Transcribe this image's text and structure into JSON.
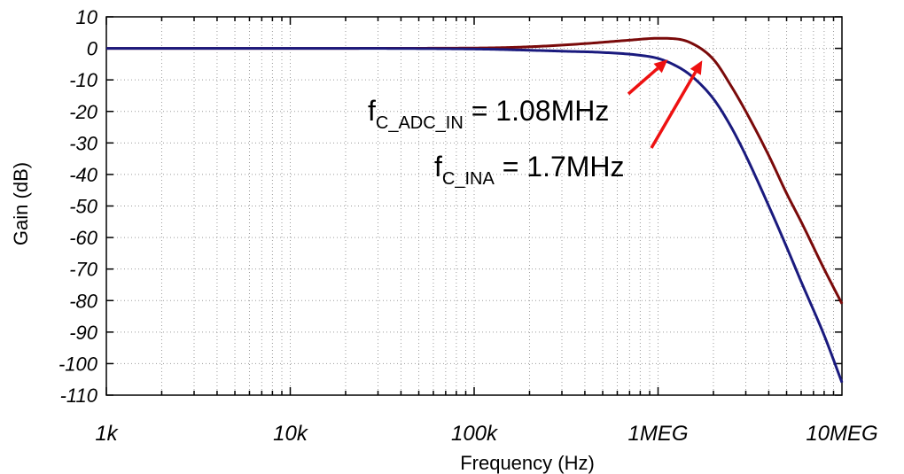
{
  "chart_data": {
    "type": "line",
    "xlabel": "Frequency (Hz)",
    "ylabel": "Gain (dB)",
    "xscale": "log",
    "xlim": [
      1000,
      10000000
    ],
    "ylim": [
      -110,
      10
    ],
    "grid": true,
    "x_major_ticks": [
      {
        "value": 1000,
        "label": "1k"
      },
      {
        "value": 10000,
        "label": "10k"
      },
      {
        "value": 100000,
        "label": "100k"
      },
      {
        "value": 1000000,
        "label": "1MEG"
      },
      {
        "value": 10000000,
        "label": "10MEG"
      }
    ],
    "y_ticks": [
      {
        "value": 10,
        "label": "10"
      },
      {
        "value": 0,
        "label": "0"
      },
      {
        "value": -10,
        "label": "-10"
      },
      {
        "value": -20,
        "label": "-20"
      },
      {
        "value": -30,
        "label": "-30"
      },
      {
        "value": -40,
        "label": "-40"
      },
      {
        "value": -50,
        "label": "-50"
      },
      {
        "value": -60,
        "label": "-60"
      },
      {
        "value": -70,
        "label": "-70"
      },
      {
        "value": -80,
        "label": "-80"
      },
      {
        "value": -90,
        "label": "-90"
      },
      {
        "value": -100,
        "label": "-100"
      },
      {
        "value": -110,
        "label": "-110"
      }
    ],
    "series": [
      {
        "color": "#7a0a0a",
        "x": [
          1000,
          10000,
          100000,
          200000,
          400000,
          700000,
          1000000,
          1200000,
          1500000,
          2000000,
          2500000,
          3000000,
          4000000,
          5000000,
          6000000,
          8000000,
          10000000
        ],
        "y": [
          0,
          0,
          0.1,
          0.5,
          1.5,
          2.6,
          3.2,
          3.1,
          1.8,
          -3.5,
          -12,
          -20,
          -34,
          -46,
          -55,
          -70,
          -81
        ]
      },
      {
        "color": "#1a1a7e",
        "x": [
          1000,
          10000,
          100000,
          200000,
          300000,
          500000,
          800000,
          1000000,
          1200000,
          1500000,
          2000000,
          2500000,
          3000000,
          4000000,
          5000000,
          6000000,
          8000000,
          10000000
        ],
        "y": [
          0,
          0,
          -0.2,
          -0.6,
          -0.9,
          -1.3,
          -2.2,
          -3.2,
          -5,
          -8.5,
          -16,
          -25,
          -34,
          -50,
          -63,
          -74,
          -91,
          -106
        ]
      }
    ],
    "annotations": [
      {
        "main": "f",
        "sub": "C_ADC_IN",
        "rest": " = 1.08MHz",
        "point": {
          "x": 1080000,
          "y": -3
        }
      },
      {
        "main": "f",
        "sub": "C_INA",
        "rest": " = 1.7MHz",
        "point": {
          "x": 1700000,
          "y": -3
        }
      }
    ],
    "annotation_color": "#ee1111"
  }
}
